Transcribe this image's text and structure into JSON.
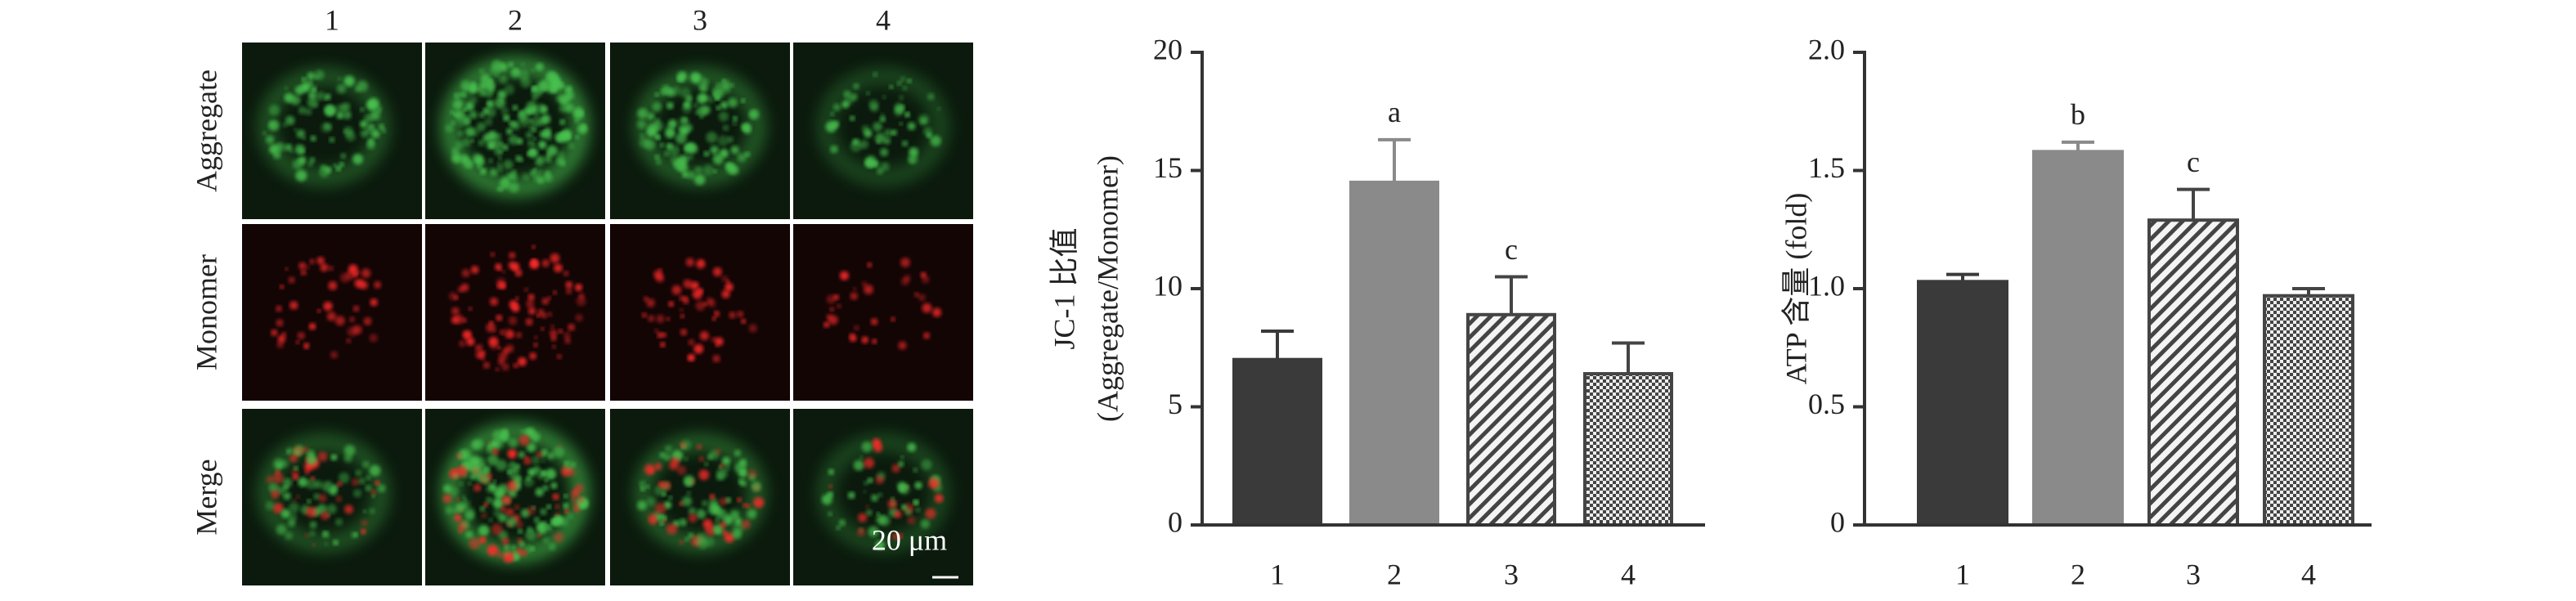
{
  "image_panel": {
    "column_labels": [
      "1",
      "2",
      "3",
      "4"
    ],
    "row_labels": [
      "Aggregate",
      "Monomer",
      "Merge"
    ],
    "scale_bar": "20 μm"
  },
  "chart_data": [
    {
      "type": "bar",
      "ylabel": [
        "JC-1 比值",
        "(Aggregate/Monomer)"
      ],
      "categories": [
        "1",
        "2",
        "3",
        "4"
      ],
      "values": [
        7.0,
        14.5,
        8.9,
        6.4
      ],
      "errors": [
        1.2,
        1.8,
        1.6,
        1.3
      ],
      "bar_labels": [
        null,
        "a",
        "c",
        null
      ],
      "colors": [
        "#3a3a3a",
        "#8a8a8a",
        "#444444",
        "#444444"
      ],
      "patterns": [
        "solid",
        "solid",
        "diagonal",
        "crosshatch"
      ],
      "ylim": [
        0,
        20
      ],
      "yticks": [
        0,
        5,
        10,
        15,
        20
      ]
    },
    {
      "type": "bar",
      "ylabel": [
        "ATP 含量 (fold)"
      ],
      "categories": [
        "1",
        "2",
        "3",
        "4"
      ],
      "values": [
        1.03,
        1.58,
        1.29,
        0.97
      ],
      "errors": [
        0.03,
        0.04,
        0.13,
        0.03
      ],
      "bar_labels": [
        null,
        "b",
        "c",
        null
      ],
      "colors": [
        "#3a3a3a",
        "#8a8a8a",
        "#444444",
        "#444444"
      ],
      "patterns": [
        "solid",
        "solid",
        "diagonal",
        "crosshatch"
      ],
      "ylim": [
        0,
        2
      ],
      "yticks": [
        0,
        0.5,
        {
          "value": 1,
          "label": "1.0"
        },
        1.5,
        {
          "value": 2,
          "label": "2.0"
        }
      ]
    }
  ]
}
